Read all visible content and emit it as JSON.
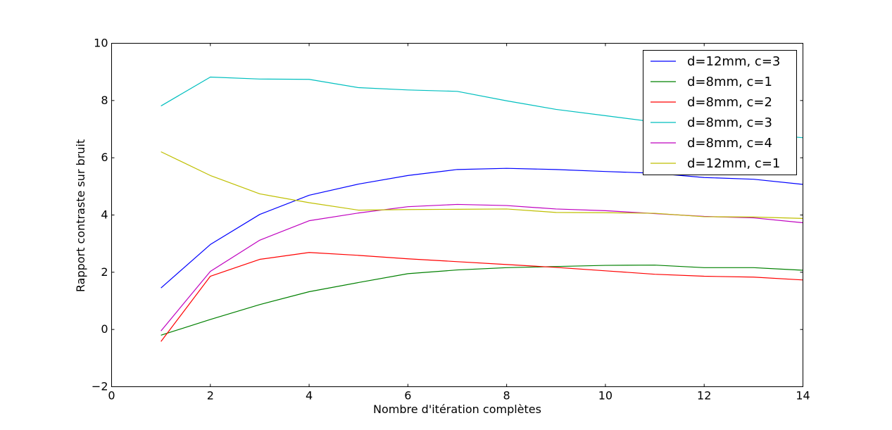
{
  "chart_data": {
    "type": "line",
    "title": "",
    "xlabel": "Nombre d'itération complètes",
    "ylabel": "Rapport contraste sur bruit",
    "xlim": [
      0,
      14
    ],
    "ylim": [
      -2,
      10
    ],
    "xticks": [
      0,
      2,
      4,
      6,
      8,
      10,
      12,
      14
    ],
    "yticks": [
      -2,
      0,
      2,
      4,
      6,
      8,
      10
    ],
    "xtick_labels": [
      "0",
      "2",
      "4",
      "6",
      "8",
      "10",
      "12",
      "14"
    ],
    "ytick_labels": [
      "−2",
      "0",
      "2",
      "4",
      "6",
      "8",
      "10"
    ],
    "grid": false,
    "legend_position": "top-right",
    "x": [
      1,
      2,
      3,
      4,
      5,
      6,
      7,
      8,
      9,
      10,
      11,
      12,
      13,
      14
    ],
    "series": [
      {
        "name": "d=12mm, c=3",
        "color": "#0000ff",
        "values": [
          1.45,
          2.97,
          4.02,
          4.69,
          5.08,
          5.38,
          5.59,
          5.63,
          5.59,
          5.52,
          5.46,
          5.31,
          5.25,
          5.07
        ]
      },
      {
        "name": "d=8mm, c=1",
        "color": "#008000",
        "values": [
          -0.2,
          0.35,
          0.87,
          1.32,
          1.64,
          1.95,
          2.08,
          2.16,
          2.2,
          2.24,
          2.25,
          2.16,
          2.16,
          2.07
        ]
      },
      {
        "name": "d=8mm, c=2",
        "color": "#ff0000",
        "values": [
          -0.42,
          1.86,
          2.45,
          2.69,
          2.59,
          2.47,
          2.37,
          2.27,
          2.17,
          2.05,
          1.93,
          1.86,
          1.83,
          1.73
        ]
      },
      {
        "name": "d=8mm, c=3",
        "color": "#00bfbf",
        "values": [
          7.81,
          8.82,
          8.75,
          8.74,
          8.45,
          8.37,
          8.32,
          7.99,
          7.69,
          7.47,
          7.25,
          7.02,
          6.84,
          6.7
        ]
      },
      {
        "name": "d=8mm, c=4",
        "color": "#bf00bf",
        "values": [
          -0.05,
          2.03,
          3.12,
          3.8,
          4.07,
          4.29,
          4.37,
          4.33,
          4.21,
          4.15,
          4.05,
          3.95,
          3.9,
          3.73
        ]
      },
      {
        "name": "d=12mm, c=1",
        "color": "#bfbf00",
        "values": [
          6.21,
          5.38,
          4.74,
          4.43,
          4.17,
          4.19,
          4.2,
          4.21,
          4.09,
          4.08,
          4.06,
          3.94,
          3.93,
          3.88
        ]
      }
    ]
  }
}
